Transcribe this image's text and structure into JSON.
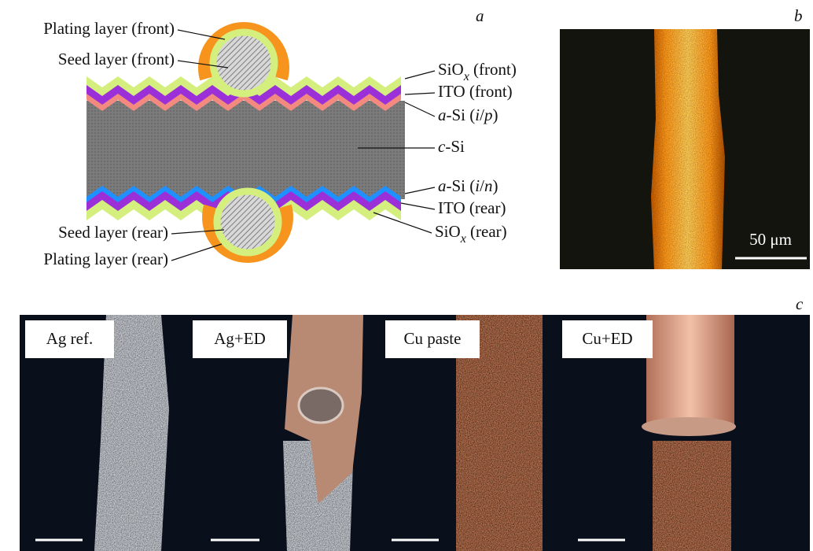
{
  "panels": {
    "a": {
      "label": "a",
      "layers": [
        {
          "parts": [
            {
              "t": "Plating layer (front)"
            }
          ]
        },
        {
          "parts": [
            {
              "t": "Seed layer (front)"
            }
          ]
        },
        {
          "parts": [
            {
              "t": "SiO"
            },
            {
              "t": "x",
              "i": true,
              "sub": true
            },
            {
              "t": " (front)"
            }
          ]
        },
        {
          "parts": [
            {
              "t": "ITO (front)"
            }
          ]
        },
        {
          "parts": [
            {
              "t": "a",
              "i": true
            },
            {
              "t": "-Si ("
            },
            {
              "t": "i",
              "i": true
            },
            {
              "t": "/"
            },
            {
              "t": "p",
              "i": true
            },
            {
              "t": ")"
            }
          ]
        },
        {
          "parts": [
            {
              "t": "c",
              "i": true
            },
            {
              "t": "-Si"
            }
          ]
        },
        {
          "parts": [
            {
              "t": "a",
              "i": true
            },
            {
              "t": "-Si ("
            },
            {
              "t": "i",
              "i": true
            },
            {
              "t": "/"
            },
            {
              "t": "n",
              "i": true
            },
            {
              "t": ")"
            }
          ]
        },
        {
          "parts": [
            {
              "t": "ITO (rear)"
            }
          ]
        },
        {
          "parts": [
            {
              "t": "SiO"
            },
            {
              "t": "x",
              "i": true,
              "sub": true
            },
            {
              "t": " (rear)"
            }
          ]
        },
        {
          "parts": [
            {
              "t": "Seed layer (rear)"
            }
          ]
        },
        {
          "parts": [
            {
              "t": "Plating layer (rear)"
            }
          ]
        }
      ]
    },
    "b": {
      "label": "b",
      "scale_bar": "50 μm"
    },
    "c": {
      "label": "c",
      "samples": [
        "Ag ref.",
        "Ag+ED",
        "Cu paste",
        "Cu+ED"
      ]
    }
  }
}
